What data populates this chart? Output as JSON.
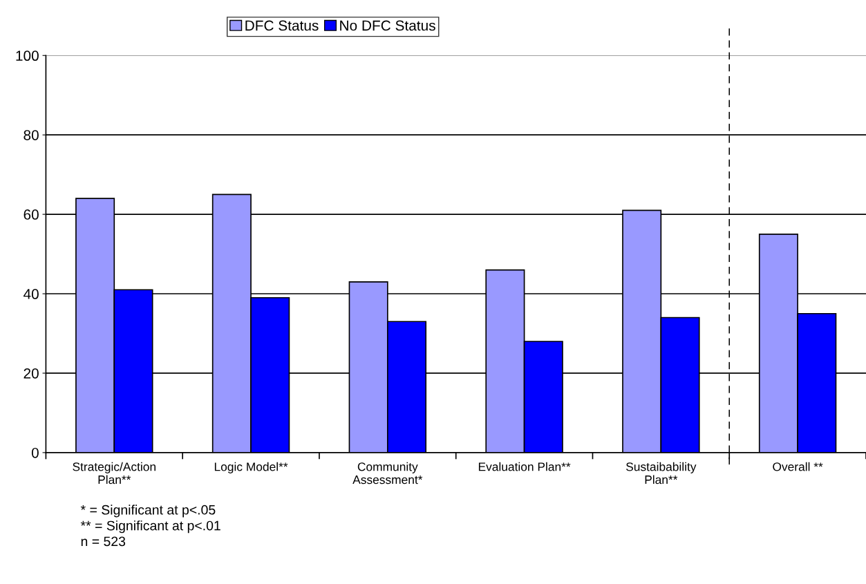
{
  "chart_data": {
    "type": "bar",
    "categories": [
      "Strategic/Action\nPlan**",
      "Logic Model**",
      "Community\nAssessment*",
      "Evaluation Plan**",
      "Sustaibability\nPlan**",
      "Overall **"
    ],
    "series": [
      {
        "name": "DFC Status",
        "color": "#9999ff",
        "values": [
          64,
          65,
          43,
          46,
          61,
          55
        ]
      },
      {
        "name": "No DFC Status",
        "color": "#0000ff",
        "values": [
          41,
          39,
          33,
          28,
          34,
          35
        ]
      }
    ],
    "ylim": [
      0,
      100
    ],
    "yticks": [
      0,
      20,
      40,
      60,
      80,
      100
    ],
    "grid": "y",
    "legend": "top",
    "annotations": [
      "* = Significant at p<.05",
      "** = Significant at p<.01",
      "n = 523"
    ]
  }
}
